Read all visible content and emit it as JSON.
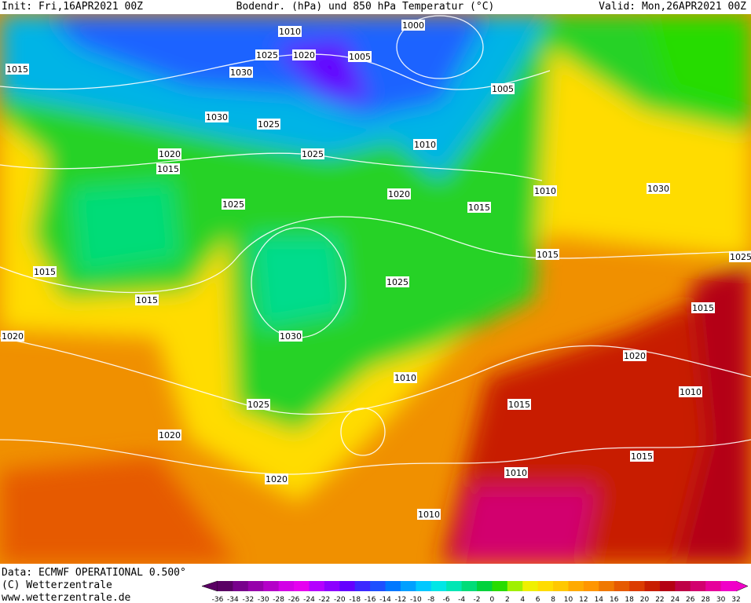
{
  "header": {
    "init": "Init: Fri,16APR2021 00Z",
    "title": "Bodendr. (hPa) und 850 hPa Temperatur (°C)",
    "valid": "Valid: Mon,26APR2021 00Z"
  },
  "footer": {
    "data": "Data: ECMWF OPERATIONAL 0.500°",
    "copyright": "(C) Wetterzentrale",
    "url": "www.wetterzentrale.de"
  },
  "isobar_labels": [
    1010,
    1000,
    1025,
    1020,
    1005,
    1015,
    1030,
    1005,
    1030,
    1025,
    1010,
    1020,
    1015,
    1025,
    1010,
    1020,
    1030,
    1025,
    1015,
    1015,
    1025,
    1015,
    1025,
    1015,
    1015,
    1030,
    1020,
    1020,
    1010,
    1010,
    1015,
    1025,
    1020,
    1015,
    1010,
    1020,
    1010
  ],
  "colorbar": {
    "ticks": [
      -36,
      -34,
      -32,
      -30,
      -28,
      -26,
      -24,
      -22,
      -20,
      -18,
      -16,
      -14,
      -12,
      -10,
      -8,
      -6,
      -4,
      -2,
      0,
      2,
      4,
      6,
      8,
      10,
      12,
      14,
      16,
      18,
      20,
      22,
      24,
      26,
      28,
      30,
      32
    ],
    "colors": [
      "#5a0064",
      "#78008c",
      "#9600aa",
      "#b400c8",
      "#d200e6",
      "#e600f0",
      "#b400ff",
      "#8c00ff",
      "#6400ff",
      "#3c28ff",
      "#1e50ff",
      "#0078ff",
      "#00a0ff",
      "#00c8ff",
      "#00e6e6",
      "#00e6b4",
      "#00dc78",
      "#00d23c",
      "#28dc00",
      "#a0f000",
      "#f0f000",
      "#ffdc00",
      "#ffc800",
      "#ffaa00",
      "#ff9600",
      "#f07800",
      "#e65a00",
      "#dc3c00",
      "#c81e00",
      "#b40014",
      "#be0046",
      "#d2006e",
      "#e6009b",
      "#f000c8"
    ]
  }
}
